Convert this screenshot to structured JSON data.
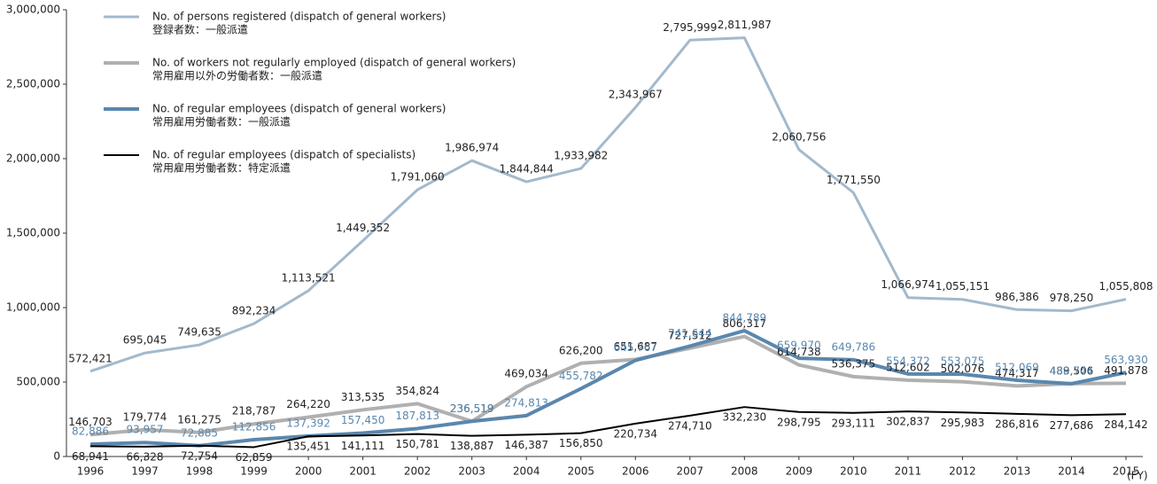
{
  "chart_data": {
    "type": "line",
    "x_label": "(FY)",
    "categories": [
      "1996",
      "1997",
      "1998",
      "1999",
      "2000",
      "2001",
      "2002",
      "2003",
      "2004",
      "2005",
      "2006",
      "2007",
      "2008",
      "2009",
      "2010",
      "2011",
      "2012",
      "2013",
      "2014",
      "2015"
    ],
    "ylim": [
      0,
      3000000
    ],
    "yticks": [
      0,
      {
        "value": 500000,
        "label": "500,000"
      },
      {
        "value": 1000000,
        "label": "1,000,000"
      },
      {
        "value": 1500000,
        "label": "1,500,000"
      },
      {
        "value": 2000000,
        "label": "2,000,000"
      },
      {
        "value": 2500000,
        "label": "2,500,000"
      },
      {
        "value": 3000000,
        "label": "3,000,000"
      }
    ],
    "grid": false,
    "legend": "top-left",
    "series": [
      {
        "name": "No. of persons registered (dispatch of general workers)",
        "name_ja": "登録者数：一般派遣",
        "color": "#a3b9cc",
        "label_color": "#222222",
        "values": [
          572421,
          695045,
          749635,
          892234,
          1113521,
          1449352,
          1791060,
          1986974,
          1844844,
          1933982,
          2343967,
          2795999,
          2811987,
          2060756,
          1771550,
          1066974,
          1055151,
          986386,
          978250,
          1055808
        ],
        "value_labels": [
          "572,421",
          "695,045",
          "749,635",
          "892,234",
          "1,113,521",
          "1,449,352",
          "1,791,060",
          "1,986,974",
          "1,844,844",
          "1,933,982",
          "2,343,967",
          "2,795,999",
          "2,811,987",
          "2,060,756",
          "1,771,550",
          "1,066,974",
          "1,055,151",
          "986,386",
          "978,250",
          "1,055,808"
        ]
      },
      {
        "name": "No. of workers not regularly employed (dispatch of general workers)",
        "name_ja": "常用雇用以外の労働者数：一般派遣",
        "color": "#b0b0b0",
        "label_color": "#222222",
        "values": [
          146703,
          179774,
          161275,
          218787,
          264220,
          313535,
          354824,
          236519,
          469034,
          626200,
          651687,
          727512,
          806317,
          614738,
          536375,
          512602,
          502076,
          474317,
          489506,
          491878
        ],
        "value_labels": [
          "146,703",
          "179,774",
          "161,275",
          "218,787",
          "264,220",
          "313,535",
          "354,824",
          "236,519",
          "469,034",
          "626,200",
          "651,687",
          "727,512",
          "806,317",
          "614,738",
          "536,375",
          "512,602",
          "502,076",
          "474,317",
          "489,506",
          "491,878"
        ]
      },
      {
        "name": "No. of regular employees (dispatch of general workers)",
        "name_ja": "常用雇用労働者数：一般派遣",
        "color": "#5a87ae",
        "label_color": "#5a87ae",
        "values": [
          82886,
          93957,
          72885,
          112856,
          137392,
          157450,
          187813,
          236519,
          274813,
          455782,
          645767,
          741644,
          844789,
          659970,
          649786,
          554372,
          553075,
          512069,
          488744,
          563930
        ],
        "value_labels": [
          "82,886",
          "93,957",
          "72,885",
          "112,856",
          "137,392",
          "157,450",
          "187,813",
          "236,519",
          "274,813",
          "455,782",
          "645,767",
          "741,644",
          "844,789",
          "659,970",
          "649,786",
          "554,372",
          "553,075",
          "512,069",
          "488,744",
          "563,930"
        ]
      },
      {
        "name": "No. of regular employees (dispatch of specialists)",
        "name_ja": "常用雇用労働者数：特定派遣",
        "color": "#000000",
        "label_color": "#222222",
        "values": [
          68941,
          66328,
          72754,
          62859,
          135451,
          141111,
          150781,
          138887,
          146387,
          156850,
          220734,
          274710,
          332230,
          298795,
          293111,
          302837,
          295983,
          286816,
          277686,
          284142
        ],
        "value_labels": [
          "68,941",
          "66,328",
          "72,754",
          "62,859",
          "135,451",
          "141,111",
          "150,781",
          "138,887",
          "146,387",
          "156,850",
          "220,734",
          "274,710",
          "332,230",
          "298,795",
          "293,111",
          "302,837",
          "295,983",
          "286,816",
          "277,686",
          "284,142"
        ]
      }
    ]
  }
}
